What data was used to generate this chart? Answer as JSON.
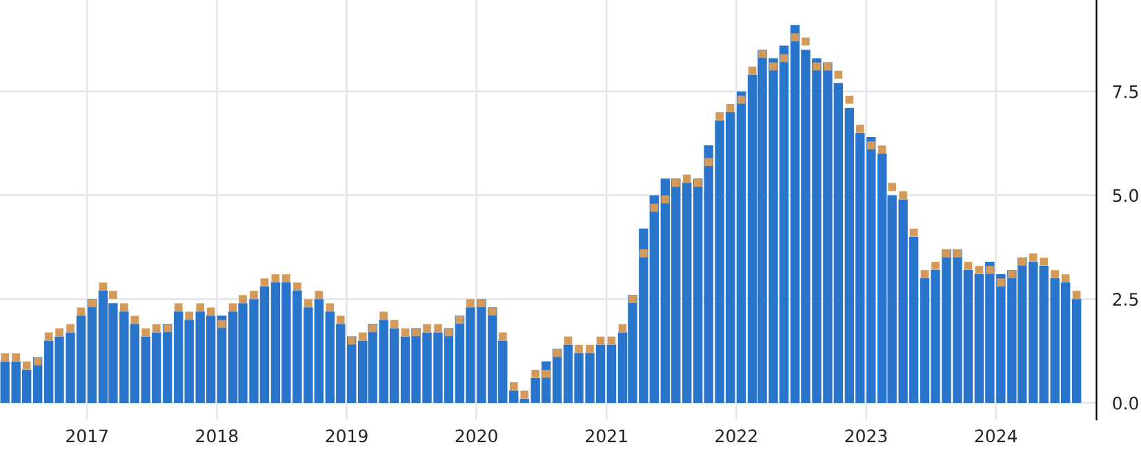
{
  "chart_data": {
    "type": "bar",
    "x": [
      "2016-05-15",
      "2016-06-15",
      "2016-07-15",
      "2016-08-15",
      "2016-09-15",
      "2016-10-15",
      "2016-11-15",
      "2016-12-15",
      "2017-01-15",
      "2017-02-15",
      "2017-03-15",
      "2017-04-15",
      "2017-05-15",
      "2017-06-15",
      "2017-07-15",
      "2017-08-15",
      "2017-09-15",
      "2017-10-15",
      "2017-11-15",
      "2017-12-15",
      "2018-01-15",
      "2018-02-15",
      "2018-03-15",
      "2018-04-15",
      "2018-05-15",
      "2018-06-15",
      "2018-07-15",
      "2018-08-15",
      "2018-09-15",
      "2018-10-15",
      "2018-11-15",
      "2018-12-15",
      "2019-01-15",
      "2019-02-15",
      "2019-03-15",
      "2019-04-15",
      "2019-05-15",
      "2019-06-15",
      "2019-07-15",
      "2019-08-15",
      "2019-09-15",
      "2019-10-15",
      "2019-11-15",
      "2019-12-15",
      "2020-01-15",
      "2020-02-15",
      "2020-03-15",
      "2020-04-15",
      "2020-05-15",
      "2020-06-15",
      "2020-07-15",
      "2020-08-15",
      "2020-09-15",
      "2020-10-15",
      "2020-11-15",
      "2020-12-15",
      "2021-01-15",
      "2021-02-15",
      "2021-03-15",
      "2021-04-15",
      "2021-05-15",
      "2021-06-15",
      "2021-07-15",
      "2021-08-15",
      "2021-09-15",
      "2021-10-15",
      "2021-11-15",
      "2021-12-15",
      "2022-01-15",
      "2022-02-15",
      "2022-03-15",
      "2022-04-15",
      "2022-05-15",
      "2022-06-15",
      "2022-07-15",
      "2022-08-15",
      "2022-09-15",
      "2022-10-15",
      "2022-11-15",
      "2022-12-15",
      "2023-01-15",
      "2023-02-15",
      "2023-03-15",
      "2023-04-15",
      "2023-05-15",
      "2023-06-15",
      "2023-07-15",
      "2023-08-15",
      "2023-09-15",
      "2023-10-15",
      "2023-11-15",
      "2023-12-15",
      "2024-01-15",
      "2024-02-15",
      "2024-03-15",
      "2024-04-15",
      "2024-05-15",
      "2024-06-15",
      "2024-07-15",
      "2024-08-15"
    ],
    "series": [
      {
        "color": "#2a75cc",
        "values": [
          1.0,
          1.0,
          0.8,
          1.1,
          1.5,
          1.6,
          1.7,
          2.1,
          2.5,
          2.7,
          2.4,
          2.2,
          1.9,
          1.6,
          1.7,
          1.9,
          2.2,
          2.0,
          2.2,
          2.1,
          2.1,
          2.2,
          2.4,
          2.5,
          2.8,
          2.9,
          2.9,
          2.7,
          2.3,
          2.5,
          2.2,
          1.9,
          1.6,
          1.5,
          1.9,
          2.0,
          1.8,
          1.6,
          1.8,
          1.7,
          1.7,
          1.8,
          2.1,
          2.3,
          2.5,
          2.3,
          1.5,
          0.3,
          0.1,
          0.6,
          1.0,
          1.3,
          1.4,
          1.2,
          1.2,
          1.4,
          1.4,
          1.7,
          2.6,
          4.2,
          5.0,
          5.4,
          5.4,
          5.3,
          5.4,
          6.2,
          6.8,
          7.0,
          7.5,
          7.9,
          8.5,
          8.3,
          8.6,
          9.1,
          8.5,
          8.3,
          8.2,
          7.7,
          7.1,
          6.5,
          6.4,
          6.0,
          5.0,
          4.9,
          4.0,
          3.0,
          3.2,
          3.7,
          3.7,
          3.2,
          3.1,
          3.4,
          3.1,
          3.2,
          3.5,
          3.4,
          3.3,
          3.0,
          2.9,
          2.5
        ]
      },
      {
        "type": "scatter",
        "marker": "square",
        "color": "#d49a5a",
        "values": [
          1.1,
          1.1,
          0.9,
          1.0,
          1.6,
          1.7,
          1.8,
          2.2,
          2.4,
          2.8,
          2.6,
          2.3,
          2.0,
          1.7,
          1.8,
          1.8,
          2.3,
          2.1,
          2.3,
          2.2,
          1.9,
          2.3,
          2.5,
          2.6,
          2.9,
          3.0,
          3.0,
          2.8,
          2.4,
          2.6,
          2.3,
          2.0,
          1.5,
          1.6,
          1.8,
          2.1,
          1.9,
          1.7,
          1.7,
          1.8,
          1.8,
          1.7,
          2.0,
          2.4,
          2.4,
          2.2,
          1.6,
          0.4,
          0.2,
          0.7,
          0.7,
          1.2,
          1.5,
          1.3,
          1.3,
          1.5,
          1.5,
          1.8,
          2.5,
          3.6,
          4.7,
          4.9,
          5.3,
          5.4,
          5.3,
          5.8,
          6.9,
          7.1,
          7.3,
          8.0,
          8.4,
          8.1,
          8.3,
          8.8,
          8.7,
          8.1,
          8.1,
          7.9,
          7.3,
          6.6,
          6.2,
          6.1,
          5.2,
          5.0,
          4.1,
          3.1,
          3.3,
          3.6,
          3.6,
          3.3,
          3.2,
          3.2,
          2.9,
          3.1,
          3.4,
          3.5,
          3.4,
          3.1,
          3.0,
          2.6
        ]
      }
    ],
    "xlim": [
      "2016-05-01",
      "2024-10-10"
    ],
    "xticks": [
      {
        "value": "2017-01-01",
        "label": "2017"
      },
      {
        "value": "2018-01-01",
        "label": "2018"
      },
      {
        "value": "2019-01-01",
        "label": "2019"
      },
      {
        "value": "2020-01-01",
        "label": "2020"
      },
      {
        "value": "2021-01-01",
        "label": "2021"
      },
      {
        "value": "2022-01-01",
        "label": "2022"
      },
      {
        "value": "2023-01-01",
        "label": "2023"
      },
      {
        "value": "2024-01-01",
        "label": "2024"
      }
    ],
    "ylim": [
      -0.4,
      9.7
    ],
    "yticks": [
      {
        "value": 0,
        "label": "0.0"
      },
      {
        "value": 2.5,
        "label": "2.5"
      },
      {
        "value": 5,
        "label": "5.0"
      },
      {
        "value": 7.5,
        "label": "7.5"
      }
    ],
    "grid": true
  }
}
